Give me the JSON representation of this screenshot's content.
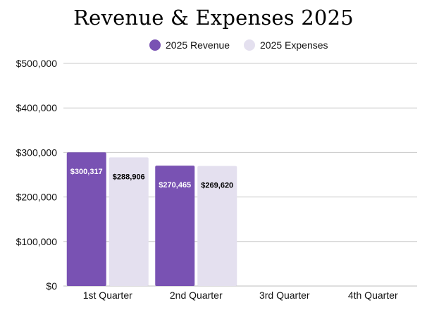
{
  "chart_data": {
    "type": "bar",
    "title": "Revenue & Expenses 2025",
    "categories": [
      "1st Quarter",
      "2nd Quarter",
      "3rd Quarter",
      "4th Quarter"
    ],
    "series": [
      {
        "name": "2025 Revenue",
        "color": "#7952b3",
        "label_color": "#ffffff",
        "values": [
          300317,
          270465,
          null,
          null
        ],
        "labels": [
          "$300,317",
          "$270,465",
          null,
          null
        ]
      },
      {
        "name": "2025 Expenses",
        "color": "#e4e0ef",
        "label_color": "#000000",
        "values": [
          288906,
          269620,
          null,
          null
        ],
        "labels": [
          "$288,906",
          "$269,620",
          null,
          null
        ]
      }
    ],
    "ylim": [
      0,
      500000
    ],
    "yticks": [
      0,
      100000,
      200000,
      300000,
      400000,
      500000
    ],
    "ytick_labels": [
      "$0",
      "$100,000",
      "$200,000",
      "$300,000",
      "$400,000",
      "$500,000"
    ],
    "xlabel": "",
    "ylabel": "",
    "grid": true,
    "legend_position": "top-center"
  }
}
